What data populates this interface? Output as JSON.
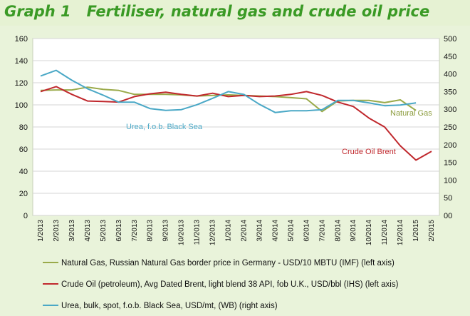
{
  "title": "Graph 1   Fertiliser, natural gas and crude oil price",
  "chart_data": {
    "type": "line",
    "categories": [
      "1/2013",
      "2/2013",
      "3/2013",
      "4/2013",
      "5/2013",
      "6/2013",
      "7/2013",
      "8/2013",
      "9/2013",
      "10/2013",
      "11/2013",
      "12/2013",
      "1/2014",
      "2/2014",
      "3/2014",
      "4/2014",
      "5/2014",
      "6/2014",
      "7/2014",
      "8/2014",
      "9/2014",
      "10/2014",
      "11/2014",
      "12/2014",
      "1/2015",
      "2/2015"
    ],
    "left_axis": {
      "ylim": [
        0,
        160
      ],
      "ticks": [
        "0",
        "20",
        "40",
        "60",
        "80",
        "100",
        "120",
        "140",
        "160"
      ]
    },
    "right_axis": {
      "ylim": [
        0,
        500
      ],
      "ticks": [
        "00",
        "50",
        "100",
        "150",
        "200",
        "250",
        "300",
        "350",
        "400",
        "450",
        "500"
      ]
    },
    "grid": true,
    "series": [
      {
        "name": "Natural Gas",
        "legend": "Natural Gas, Russian Natural Gas border price in Germany - USD/10 MBTU (IMF) (left axis)",
        "axis": "left",
        "color": "#9aaa4a",
        "values": [
          113,
          113.5,
          113.5,
          116,
          114,
          113,
          109.5,
          109.5,
          109.5,
          109,
          108,
          108.5,
          109,
          108.5,
          108,
          107.5,
          106.5,
          105.5,
          94,
          103.5,
          104,
          104,
          102,
          104.5,
          95,
          null
        ]
      },
      {
        "name": "Crude Oil Brent",
        "legend": "Crude Oil (petroleum),  Avg Dated Brent, light blend 38 API, fob U.K., USD/bbl (IHS) (left axis)",
        "axis": "left",
        "color": "#c0282d",
        "values": [
          112,
          116.5,
          109.5,
          103.5,
          103,
          102.5,
          107.5,
          110,
          111.5,
          109.5,
          108,
          110.5,
          107.5,
          108.5,
          107.5,
          108,
          109.5,
          112,
          108.5,
          102.5,
          98.5,
          88,
          80,
          63,
          50,
          58
        ]
      },
      {
        "name": "Urea, f.o.b. Black Sea",
        "legend": "Urea, bulk, spot,  f.o.b. Black Sea, USD/mt, (WB) (right axis)",
        "axis": "right",
        "color": "#4aa8c6",
        "values": [
          394,
          410,
          382,
          358,
          340,
          320,
          320,
          302,
          297,
          299,
          313,
          331,
          350,
          342,
          314,
          291,
          296,
          296,
          299,
          325,
          325,
          318,
          310,
          312,
          318,
          null
        ]
      }
    ],
    "annotations": [
      {
        "text": "Natural Gas",
        "color": "#8a9a3a"
      },
      {
        "text": "Urea, f.o.b. Black Sea",
        "color": "#4aa8c6"
      },
      {
        "text": "Crude Oil Brent",
        "color": "#c0282d"
      }
    ]
  }
}
